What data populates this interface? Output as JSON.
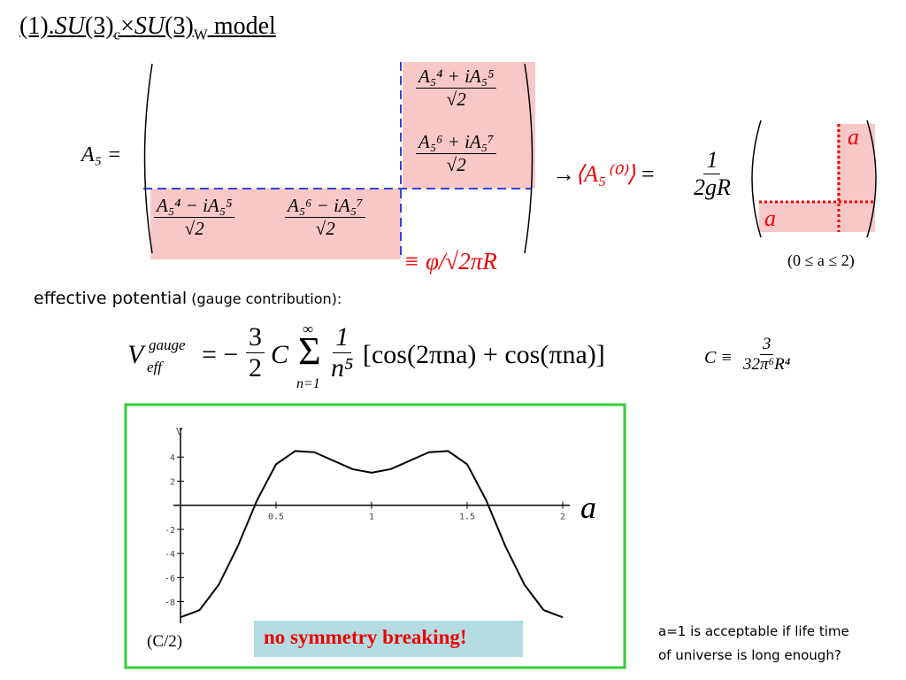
{
  "title": {
    "prefix": "(1).",
    "g1": "SU",
    "n1": "(3)",
    "s1": "c",
    "times": "×",
    "g2": "SU",
    "n2": "(3)",
    "s2": "W",
    "suffix": " model"
  },
  "matrix": {
    "lhs": "A₅ =",
    "entries": [
      {
        "num": "A₅⁴ + iA₅⁵",
        "den": "√2"
      },
      {
        "num": "A₅⁶ + iA₅⁷",
        "den": "√2"
      },
      {
        "num": "A₅⁴ − iA₅⁵",
        "den": "√2"
      },
      {
        "num": "A₅⁶ − iA₅⁷",
        "den": "√2"
      }
    ],
    "identity": "≡ φ/√2πR"
  },
  "vev": {
    "arrow": "→",
    "lhs": "⟨A₅⁽⁰⁾⟩",
    "eq": "=",
    "num": "1",
    "den": "2gR",
    "label_top": "a",
    "label_bottom": "a",
    "range": "(0 ≤ a ≤ 2)"
  },
  "effective": {
    "main": "effective potential",
    "paren": " (gauge contribution):"
  },
  "formula": {
    "V": "V",
    "sup": "gauge",
    "sub": "eff",
    "eq": "= −",
    "n1": "3",
    "d1": "2",
    "C": "C",
    "sigma": "Σ",
    "top": "∞",
    "bottom": "n=1",
    "n2": "1",
    "d2": "n⁵",
    "rest": "[cos(2πna) + cos(πna)]"
  },
  "cdef": {
    "lhs": "C ≡",
    "num": "3",
    "den": "32π⁶R⁴"
  },
  "chart_data": {
    "type": "line",
    "xlabel": "a",
    "ylabel": "V",
    "yunit": "(C/2)",
    "annotation": "no symmetry breaking!",
    "x": [
      0,
      0.1,
      0.2,
      0.3,
      0.4,
      0.5,
      0.6,
      0.7,
      0.8,
      0.9,
      1.0,
      1.1,
      1.2,
      1.3,
      1.4,
      1.5,
      1.6,
      1.7,
      1.8,
      1.9,
      2.0
    ],
    "values": [
      -9.3,
      -8.7,
      -6.6,
      -3.4,
      0.4,
      3.4,
      4.5,
      4.4,
      3.7,
      3.0,
      2.7,
      3.0,
      3.7,
      4.4,
      4.5,
      3.4,
      0.4,
      -3.4,
      -6.6,
      -8.7,
      -9.3
    ],
    "color": "#000000",
    "xlim": [
      0,
      2
    ],
    "ylim": [
      -9.8,
      6
    ],
    "xticks": [
      0.5,
      1,
      1.5,
      2
    ],
    "yticks": [
      4,
      2,
      -2,
      -4,
      -6,
      -8
    ]
  },
  "note": [
    "a=1 is acceptable if life time",
    "of universe is long enough?"
  ]
}
